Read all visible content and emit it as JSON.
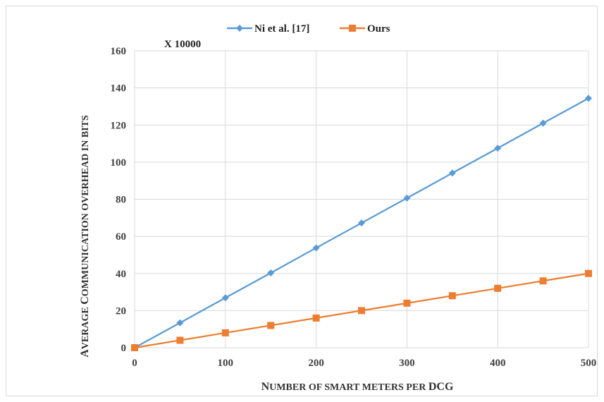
{
  "chart_data": {
    "type": "line",
    "x": [
      0,
      50,
      100,
      150,
      200,
      250,
      300,
      350,
      400,
      450,
      500
    ],
    "series": [
      {
        "name": "Ni et al. [17]",
        "color": "#5b9bd5",
        "marker": "diamond",
        "values": [
          0,
          13.4,
          26.9,
          40.3,
          53.8,
          67.2,
          80.6,
          94.1,
          107.5,
          121.0,
          134.4
        ]
      },
      {
        "name": "Ours",
        "color": "#ed7d31",
        "marker": "square",
        "values": [
          0,
          4,
          8,
          12,
          16,
          20,
          24,
          28,
          32,
          36,
          40
        ]
      }
    ],
    "xlim": [
      0,
      500
    ],
    "ylim": [
      0,
      160
    ],
    "xticks": [
      0,
      100,
      200,
      300,
      400,
      500
    ],
    "yticks": [
      0,
      20,
      40,
      60,
      80,
      100,
      120,
      140,
      160
    ],
    "xlabel": "Number of smart meters per DCG",
    "ylabel": "Average Communication overhead in bits",
    "multiplier": "X 10000",
    "grid": true,
    "legend_position": "top-center"
  }
}
